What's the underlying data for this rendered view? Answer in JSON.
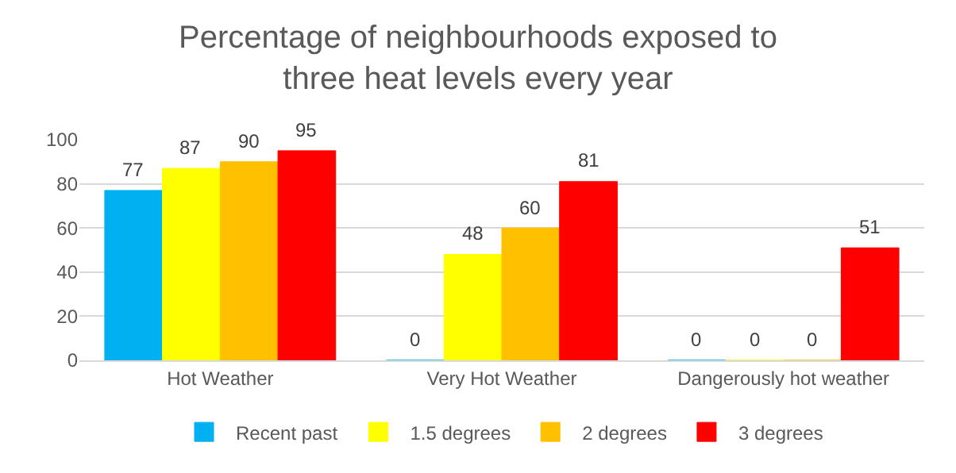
{
  "chart_data": {
    "type": "bar",
    "title": "Percentage of neighbourhoods exposed to\nthree heat levels every year",
    "categories": [
      "Hot Weather",
      "Very Hot Weather",
      "Dangerously hot weather"
    ],
    "series": [
      {
        "name": "Recent past",
        "color": "#00b0f0",
        "values": [
          77,
          0,
          0
        ]
      },
      {
        "name": "1.5 degrees",
        "color": "#ffff00",
        "values": [
          87,
          48,
          0
        ]
      },
      {
        "name": "2 degrees",
        "color": "#ffc000",
        "values": [
          90,
          60,
          0
        ]
      },
      {
        "name": "3 degrees",
        "color": "#ff0000",
        "values": [
          95,
          81,
          51
        ]
      }
    ],
    "ylim": [
      0,
      100
    ],
    "yticks": [
      0,
      20,
      40,
      60,
      80,
      100
    ],
    "grid": "y",
    "legend": "bottom",
    "data_labels": true
  }
}
